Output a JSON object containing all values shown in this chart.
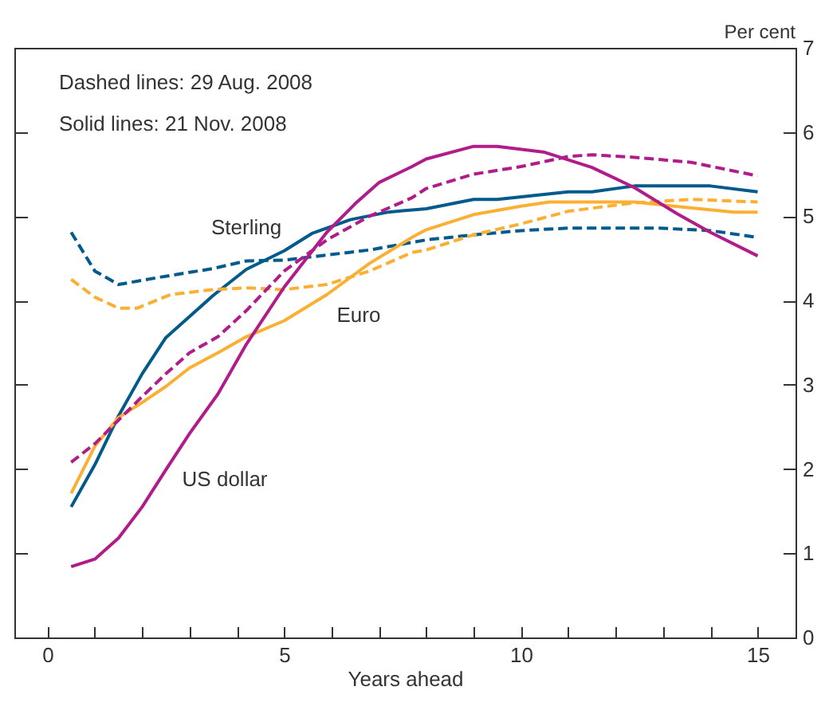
{
  "chart_data": {
    "type": "line",
    "xlabel": "Years ahead",
    "ylabel": "Per cent",
    "annotations": [
      "Dashed lines:  29 Aug. 2008",
      "Solid lines:  21 Nov. 2008"
    ],
    "xlim": [
      -0.7,
      15.8
    ],
    "ylim": [
      0,
      7
    ],
    "xticks": [
      0,
      {
        "value": 1,
        "label": null
      },
      {
        "value": 2,
        "label": null
      },
      {
        "value": 3,
        "label": null
      },
      {
        "value": 4,
        "label": null
      },
      5,
      {
        "value": 6,
        "label": null
      },
      {
        "value": 7,
        "label": null
      },
      {
        "value": 8,
        "label": null
      },
      {
        "value": 9,
        "label": null
      },
      10,
      {
        "value": 11,
        "label": null
      },
      {
        "value": 12,
        "label": null
      },
      {
        "value": 13,
        "label": null
      },
      {
        "value": 14,
        "label": null
      },
      15
    ],
    "yticks": [
      0,
      1,
      2,
      3,
      4,
      5,
      6,
      7
    ],
    "grid": false,
    "legend": false,
    "series": [
      {
        "name": "Sterling",
        "color": "#005a8c",
        "line_style": "solid",
        "x": [
          0.5,
          1,
          1.5,
          2,
          2.5,
          3,
          3.5,
          4.2,
          5,
          5.6,
          6.4,
          7.2,
          8,
          9,
          9.5,
          11,
          11.5,
          12.4,
          14,
          15
        ],
        "values": [
          1.55,
          2.05,
          2.63,
          3.13,
          3.56,
          3.81,
          4.06,
          4.37,
          4.59,
          4.8,
          4.96,
          5.05,
          5.09,
          5.2,
          5.2,
          5.29,
          5.29,
          5.36,
          5.36,
          5.29
        ]
      },
      {
        "color": "#005a8c",
        "line_style": "dashed",
        "x": [
          0.5,
          1,
          1.5,
          2.3,
          3.5,
          4.2,
          5,
          5.9,
          6.8,
          8,
          9,
          10,
          11,
          12.9,
          14,
          15
        ],
        "values": [
          4.81,
          4.35,
          4.19,
          4.27,
          4.38,
          4.47,
          4.48,
          4.54,
          4.6,
          4.72,
          4.78,
          4.83,
          4.86,
          4.86,
          4.83,
          4.75
        ]
      },
      {
        "name": "Euro",
        "color": "#fbb034",
        "line_style": "solid",
        "x": [
          0.5,
          1,
          1.5,
          2,
          2.5,
          3,
          3.6,
          4.2,
          5,
          5.9,
          6.8,
          7.7,
          8,
          9,
          10,
          10.6,
          12.4,
          13.4,
          14.5,
          15
        ],
        "values": [
          1.71,
          2.27,
          2.61,
          2.79,
          2.98,
          3.2,
          3.38,
          3.57,
          3.76,
          4.07,
          4.44,
          4.75,
          4.84,
          5.02,
          5.12,
          5.17,
          5.17,
          5.11,
          5.05,
          5.05
        ]
      },
      {
        "color": "#fbb034",
        "line_style": "dashed",
        "x": [
          0.5,
          1,
          1.5,
          1.9,
          2.6,
          3.5,
          4.2,
          5,
          5.9,
          6.8,
          7.7,
          8,
          9,
          10,
          11,
          12.4,
          13.6,
          15
        ],
        "values": [
          4.25,
          4.04,
          3.91,
          3.91,
          4.07,
          4.13,
          4.15,
          4.13,
          4.19,
          4.35,
          4.57,
          4.6,
          4.78,
          4.91,
          5.06,
          5.16,
          5.2,
          5.17
        ]
      },
      {
        "name": "US dollar",
        "color": "#b01c8a",
        "line_style": "solid",
        "x": [
          0.5,
          1,
          1.5,
          2,
          2.5,
          3,
          3.6,
          4.2,
          5,
          5.9,
          6.5,
          7,
          7.7,
          8,
          9,
          9.5,
          10.5,
          11.5,
          12.4,
          13.3,
          14,
          15
        ],
        "values": [
          0.84,
          0.93,
          1.18,
          1.55,
          1.99,
          2.42,
          2.89,
          3.48,
          4.16,
          4.81,
          5.15,
          5.4,
          5.59,
          5.68,
          5.83,
          5.83,
          5.76,
          5.58,
          5.34,
          5.03,
          4.81,
          4.53
        ]
      },
      {
        "color": "#b01c8a",
        "line_style": "dashed",
        "x": [
          0.5,
          1,
          1.5,
          2,
          2.5,
          3,
          3.6,
          4.2,
          5,
          5.9,
          6.8,
          7.7,
          8,
          9,
          10,
          11,
          11.5,
          12.4,
          13.6,
          15
        ],
        "values": [
          2.08,
          2.3,
          2.58,
          2.86,
          3.13,
          3.38,
          3.57,
          3.88,
          4.35,
          4.72,
          5.0,
          5.22,
          5.33,
          5.5,
          5.59,
          5.71,
          5.73,
          5.7,
          5.64,
          5.48
        ]
      }
    ]
  }
}
